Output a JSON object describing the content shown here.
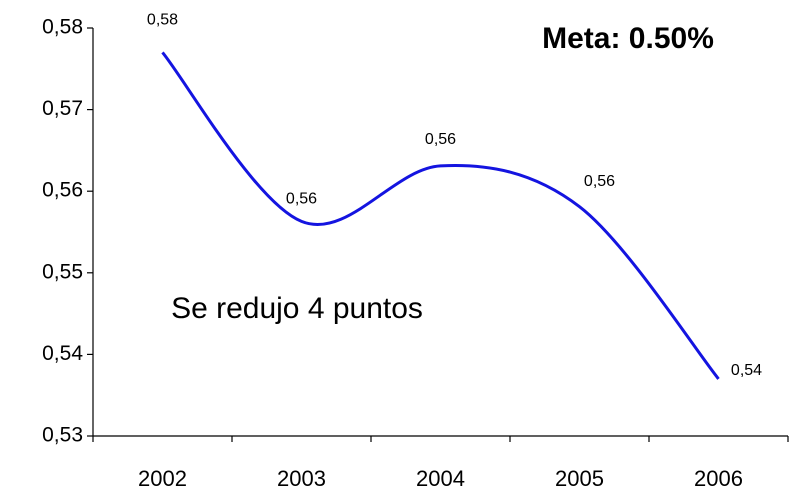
{
  "chart_data": {
    "type": "line",
    "categories": [
      "2002",
      "2003",
      "2004",
      "2005",
      "2006"
    ],
    "values": [
      0.577,
      0.5563,
      0.5631,
      0.5581,
      0.537
    ],
    "value_labels": [
      "0,58",
      "0,56",
      "0,56",
      "0,56",
      "0,54"
    ],
    "color": "#1414e0",
    "ylim": [
      0.53,
      0.58
    ],
    "yticks": [
      {
        "value": 0.53,
        "label": "0,53"
      },
      {
        "value": 0.54,
        "label": "0,54"
      },
      {
        "value": 0.55,
        "label": "0,55"
      },
      {
        "value": 0.56,
        "label": "0,56"
      },
      {
        "value": 0.57,
        "label": "0,57"
      },
      {
        "value": 0.58,
        "label": "0,58"
      }
    ],
    "grid": false,
    "annotations": [
      {
        "text": "Meta: 0.50%",
        "color": "#c00000"
      },
      {
        "text": "Se redujo 4 puntos",
        "color": "#3333cc"
      }
    ]
  }
}
